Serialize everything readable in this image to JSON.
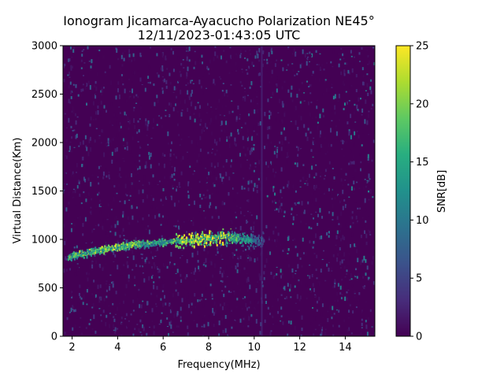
{
  "chart_data": {
    "type": "heatmap",
    "title": "Ionogram Jicamarca-Ayacucho Polarization NE45°",
    "subtitle": "12/11/2023-01:43:05 UTC",
    "xlabel": "Frequency(MHz)",
    "ylabel": "Virtual Distance(Km)",
    "xlim": [
      1.6,
      15.3
    ],
    "ylim": [
      0,
      3000
    ],
    "x_ticks": [
      2,
      4,
      6,
      8,
      10,
      12,
      14
    ],
    "y_ticks": [
      0,
      500,
      1000,
      1500,
      2000,
      2500,
      3000
    ],
    "colorbar": {
      "label": "SNR[dB]",
      "range": [
        0,
        25
      ],
      "ticks": [
        0,
        5,
        10,
        15,
        20,
        25
      ],
      "colormap": "viridis"
    },
    "colors": {
      "background": "#440154",
      "low": "#3b528b",
      "mid": "#21918c",
      "high": "#5ec962",
      "peak": "#fde725"
    },
    "trace": {
      "description_points_freq_mhz": [
        1.8,
        2.5,
        3.0,
        4.0,
        5.0,
        6.0,
        6.5,
        7.0,
        8.0,
        8.5,
        9.0,
        9.5,
        10.0,
        10.4
      ],
      "distance_km": [
        830,
        860,
        890,
        930,
        960,
        980,
        990,
        1000,
        1020,
        1040,
        1020,
        1010,
        1000,
        1000
      ],
      "snr_db": [
        18,
        20,
        20,
        22,
        18,
        16,
        20,
        24,
        22,
        24,
        18,
        16,
        10,
        6
      ]
    },
    "grid": false
  }
}
